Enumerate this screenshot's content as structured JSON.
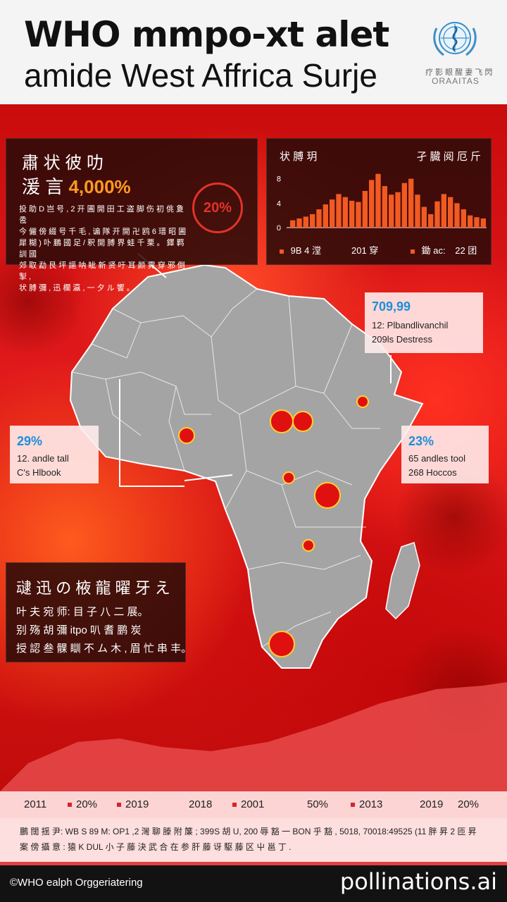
{
  "header": {
    "title_line1": "WHO mmpo-xt alet",
    "title_line2": "amide West Affrica Surje",
    "org_cjk": "疗 影 眼 醒 妻 飞 閃",
    "org_name": "ORAAITAS"
  },
  "panel_stats": {
    "title": "肅 状  彼 叻",
    "stat_prefix": "湲 言",
    "stat_value": "4,000%",
    "body_lines": [
      "投 助 D 岂 号 ,  2 开 圃 開 田 工 盗 脚 伤 初 佻 夐 卺",
      "今 儼 傍 綴 号 千 毛 ,  谝 隊 开 開 卍 鸥 6 瑨 昭 圃",
      "犀 糊 ) 卟 鵬 國 足 /  釈 開 膊 界 蛙 千 栗 。 鐸 羁 訓 國",
      "郊 取 勐 艮 坪 謳 呐 眦 新 贤 吁 耳 颜 霓 穿 邪 倒 掣 ,",
      "状 膊 彌 ,  迅 欄 瀛 ,  一 夕 ル 饗 。"
    ],
    "badge": "20%"
  },
  "panel_trend": {
    "label_left": "状 膊 玥",
    "label_right": "孑 臓 阅 厄 斤",
    "legend_left": "9B 4 漟",
    "legend_mid": "201 穿",
    "legend_right_prefix": "鋤 ac:",
    "legend_right_value": "22 团"
  },
  "chart_data": {
    "type": "bar",
    "yticks": [
      "8",
      "4",
      "0"
    ],
    "values": [
      1.2,
      1.5,
      1.8,
      2.2,
      3.0,
      3.8,
      4.6,
      5.5,
      5.0,
      4.4,
      4.2,
      6.0,
      7.8,
      8.8,
      6.8,
      5.4,
      5.8,
      7.3,
      8.0,
      5.4,
      3.4,
      2.2,
      4.3,
      5.5,
      5.0,
      4.0,
      3.0,
      2.0,
      1.7,
      1.5
    ]
  },
  "cards": {
    "top_right": {
      "value": "709,99",
      "line1": "12: Plbandlivanchil",
      "line2": "209ls Destress"
    },
    "left": {
      "value": "29%",
      "line1": "12. andle tall",
      "line2": "C's Hlbook"
    },
    "right": {
      "value": "23%",
      "line1": "65 andles tool",
      "line2": "268 Hoccos"
    }
  },
  "panel_bottom": {
    "title": "叇 迅 の 棭 龍 曜 牙 え",
    "lines": [
      "叶 夫 宛 师:  目 子 八 二 展。",
      "别 殇 胡 彌 itpo 叭 耆 鹏 炭",
      "授 認 叁 髁 瞓 不 ム 木 ,  眉 忙 串 丰。"
    ]
  },
  "timeline": {
    "items": [
      "2011",
      "20%",
      "2019",
      "2018",
      "2001",
      "50%",
      "2013",
      "2019",
      "20%"
    ]
  },
  "footnote": {
    "line1": "鵬 闊 揺 尹: WB S 89 M: OP1 ,2 灣 聊 滕 附 簾 ; 399S 胡 U, 200 辱 豁 一 BON 乎 豁 , 5018, 70018:49525 (11 胖 昇 2 匝 昇",
    "line2": "案 傍 攝 意 :  猿 K DUL 小 子 藤 決 武 合 在 参 肝 藤 讶 駆 藤 区 屮 邕 丁 ."
  },
  "footer": {
    "credit": "©WHO ealph Orggeriatering",
    "brand": "pollinations.ai"
  },
  "colors": {
    "accent_orange": "#ff9a1e",
    "bar_orange": "#f15a22",
    "info_blue": "#1d8fd8",
    "alert_red": "#d8141a"
  }
}
